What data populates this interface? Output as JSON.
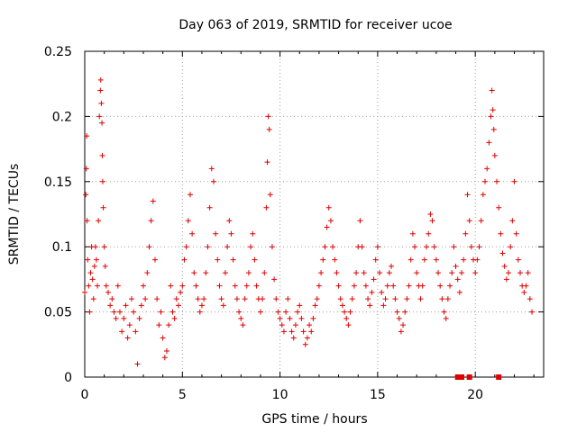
{
  "chart_data": {
    "type": "scatter",
    "title": "Day 063 of 2019, SRMTID for receiver ucoe",
    "xlabel": "GPS time / hours",
    "ylabel": "SRMTID / TECUs",
    "xlim": [
      0,
      23.5
    ],
    "ylim": [
      0,
      0.25
    ],
    "xticks": [
      0,
      5,
      10,
      15,
      20
    ],
    "xtick_labels": [
      "0",
      "5",
      "10",
      "15",
      "20"
    ],
    "yticks": [
      0,
      0.05,
      0.1,
      0.15,
      0.2,
      0.25
    ],
    "ytick_labels": [
      "0",
      "0.05",
      "0.1",
      "0.15",
      "0.2",
      "0.25"
    ],
    "grid": true,
    "legend": "none",
    "marker": "plus",
    "color": "#e00000",
    "series": [
      {
        "name": "SRMTID",
        "points": [
          [
            0.0,
            0.065
          ],
          [
            0.05,
            0.14
          ],
          [
            0.08,
            0.16
          ],
          [
            0.1,
            0.185
          ],
          [
            0.12,
            0.12
          ],
          [
            0.15,
            0.09
          ],
          [
            0.2,
            0.07
          ],
          [
            0.25,
            0.05
          ],
          [
            0.3,
            0.08
          ],
          [
            0.35,
            0.1
          ],
          [
            0.4,
            0.075
          ],
          [
            0.45,
            0.06
          ],
          [
            0.5,
            0.085
          ],
          [
            0.55,
            0.1
          ],
          [
            0.6,
            0.09
          ],
          [
            0.65,
            0.07
          ],
          [
            0.7,
            0.12
          ],
          [
            0.75,
            0.2
          ],
          [
            0.8,
            0.22
          ],
          [
            0.82,
            0.228
          ],
          [
            0.85,
            0.21
          ],
          [
            0.88,
            0.195
          ],
          [
            0.9,
            0.17
          ],
          [
            0.92,
            0.15
          ],
          [
            0.95,
            0.13
          ],
          [
            1.0,
            0.1
          ],
          [
            1.05,
            0.085
          ],
          [
            1.1,
            0.07
          ],
          [
            1.2,
            0.065
          ],
          [
            1.3,
            0.055
          ],
          [
            1.4,
            0.06
          ],
          [
            1.5,
            0.05
          ],
          [
            1.6,
            0.045
          ],
          [
            1.7,
            0.07
          ],
          [
            1.8,
            0.05
          ],
          [
            1.9,
            0.035
          ],
          [
            2.0,
            0.045
          ],
          [
            2.1,
            0.055
          ],
          [
            2.2,
            0.03
          ],
          [
            2.3,
            0.04
          ],
          [
            2.4,
            0.06
          ],
          [
            2.5,
            0.05
          ],
          [
            2.6,
            0.035
          ],
          [
            2.7,
            0.01
          ],
          [
            2.8,
            0.045
          ],
          [
            2.9,
            0.055
          ],
          [
            3.0,
            0.07
          ],
          [
            3.1,
            0.06
          ],
          [
            3.2,
            0.08
          ],
          [
            3.3,
            0.1
          ],
          [
            3.4,
            0.12
          ],
          [
            3.5,
            0.135
          ],
          [
            3.6,
            0.09
          ],
          [
            3.7,
            0.06
          ],
          [
            3.8,
            0.04
          ],
          [
            3.9,
            0.05
          ],
          [
            4.0,
            0.03
          ],
          [
            4.1,
            0.015
          ],
          [
            4.2,
            0.02
          ],
          [
            4.3,
            0.04
          ],
          [
            4.4,
            0.07
          ],
          [
            4.5,
            0.05
          ],
          [
            4.6,
            0.045
          ],
          [
            4.7,
            0.06
          ],
          [
            4.8,
            0.055
          ],
          [
            4.9,
            0.065
          ],
          [
            5.0,
            0.07
          ],
          [
            5.1,
            0.09
          ],
          [
            5.2,
            0.1
          ],
          [
            5.3,
            0.12
          ],
          [
            5.4,
            0.14
          ],
          [
            5.5,
            0.11
          ],
          [
            5.6,
            0.08
          ],
          [
            5.7,
            0.07
          ],
          [
            5.8,
            0.06
          ],
          [
            5.9,
            0.05
          ],
          [
            6.0,
            0.055
          ],
          [
            6.1,
            0.06
          ],
          [
            6.2,
            0.08
          ],
          [
            6.3,
            0.1
          ],
          [
            6.4,
            0.13
          ],
          [
            6.5,
            0.16
          ],
          [
            6.6,
            0.15
          ],
          [
            6.7,
            0.11
          ],
          [
            6.8,
            0.09
          ],
          [
            6.9,
            0.07
          ],
          [
            7.0,
            0.06
          ],
          [
            7.1,
            0.055
          ],
          [
            7.2,
            0.08
          ],
          [
            7.3,
            0.1
          ],
          [
            7.4,
            0.12
          ],
          [
            7.5,
            0.11
          ],
          [
            7.6,
            0.09
          ],
          [
            7.7,
            0.07
          ],
          [
            7.8,
            0.06
          ],
          [
            7.9,
            0.05
          ],
          [
            8.0,
            0.045
          ],
          [
            8.1,
            0.04
          ],
          [
            8.2,
            0.06
          ],
          [
            8.3,
            0.07
          ],
          [
            8.4,
            0.08
          ],
          [
            8.5,
            0.1
          ],
          [
            8.6,
            0.11
          ],
          [
            8.7,
            0.09
          ],
          [
            8.8,
            0.07
          ],
          [
            8.9,
            0.06
          ],
          [
            9.0,
            0.05
          ],
          [
            9.1,
            0.06
          ],
          [
            9.2,
            0.08
          ],
          [
            9.3,
            0.13
          ],
          [
            9.35,
            0.165
          ],
          [
            9.4,
            0.2
          ],
          [
            9.45,
            0.19
          ],
          [
            9.5,
            0.14
          ],
          [
            9.6,
            0.1
          ],
          [
            9.7,
            0.075
          ],
          [
            9.8,
            0.06
          ],
          [
            9.9,
            0.05
          ],
          [
            10.0,
            0.045
          ],
          [
            10.1,
            0.04
          ],
          [
            10.2,
            0.035
          ],
          [
            10.3,
            0.05
          ],
          [
            10.4,
            0.06
          ],
          [
            10.5,
            0.045
          ],
          [
            10.6,
            0.035
          ],
          [
            10.7,
            0.03
          ],
          [
            10.8,
            0.04
          ],
          [
            10.9,
            0.05
          ],
          [
            11.0,
            0.055
          ],
          [
            11.1,
            0.045
          ],
          [
            11.2,
            0.035
          ],
          [
            11.3,
            0.025
          ],
          [
            11.4,
            0.03
          ],
          [
            11.5,
            0.04
          ],
          [
            11.6,
            0.035
          ],
          [
            11.7,
            0.045
          ],
          [
            11.8,
            0.055
          ],
          [
            11.9,
            0.06
          ],
          [
            12.0,
            0.07
          ],
          [
            12.1,
            0.08
          ],
          [
            12.2,
            0.09
          ],
          [
            12.3,
            0.1
          ],
          [
            12.4,
            0.115
          ],
          [
            12.5,
            0.13
          ],
          [
            12.6,
            0.12
          ],
          [
            12.7,
            0.1
          ],
          [
            12.8,
            0.09
          ],
          [
            12.9,
            0.08
          ],
          [
            13.0,
            0.07
          ],
          [
            13.1,
            0.06
          ],
          [
            13.2,
            0.055
          ],
          [
            13.3,
            0.05
          ],
          [
            13.4,
            0.045
          ],
          [
            13.5,
            0.04
          ],
          [
            13.6,
            0.05
          ],
          [
            13.7,
            0.06
          ],
          [
            13.8,
            0.07
          ],
          [
            13.9,
            0.08
          ],
          [
            14.0,
            0.1
          ],
          [
            14.1,
            0.12
          ],
          [
            14.2,
            0.1
          ],
          [
            14.3,
            0.08
          ],
          [
            14.4,
            0.07
          ],
          [
            14.5,
            0.06
          ],
          [
            14.6,
            0.055
          ],
          [
            14.7,
            0.065
          ],
          [
            14.8,
            0.075
          ],
          [
            14.9,
            0.09
          ],
          [
            15.0,
            0.1
          ],
          [
            15.1,
            0.08
          ],
          [
            15.2,
            0.065
          ],
          [
            15.3,
            0.055
          ],
          [
            15.4,
            0.06
          ],
          [
            15.5,
            0.07
          ],
          [
            15.6,
            0.08
          ],
          [
            15.7,
            0.085
          ],
          [
            15.8,
            0.07
          ],
          [
            15.9,
            0.06
          ],
          [
            16.0,
            0.05
          ],
          [
            16.1,
            0.045
          ],
          [
            16.2,
            0.035
          ],
          [
            16.3,
            0.04
          ],
          [
            16.4,
            0.05
          ],
          [
            16.5,
            0.06
          ],
          [
            16.6,
            0.07
          ],
          [
            16.7,
            0.09
          ],
          [
            16.8,
            0.11
          ],
          [
            16.9,
            0.1
          ],
          [
            17.0,
            0.08
          ],
          [
            17.1,
            0.07
          ],
          [
            17.2,
            0.06
          ],
          [
            17.3,
            0.07
          ],
          [
            17.4,
            0.09
          ],
          [
            17.5,
            0.1
          ],
          [
            17.6,
            0.11
          ],
          [
            17.7,
            0.125
          ],
          [
            17.8,
            0.12
          ],
          [
            17.9,
            0.1
          ],
          [
            18.0,
            0.09
          ],
          [
            18.1,
            0.08
          ],
          [
            18.2,
            0.07
          ],
          [
            18.3,
            0.06
          ],
          [
            18.4,
            0.05
          ],
          [
            18.5,
            0.045
          ],
          [
            18.6,
            0.06
          ],
          [
            18.7,
            0.07
          ],
          [
            18.8,
            0.08
          ],
          [
            18.9,
            0.1
          ],
          [
            19.0,
            0.085
          ],
          [
            19.1,
            0.075
          ],
          [
            19.2,
            0.065
          ],
          [
            19.3,
            0.08
          ],
          [
            19.4,
            0.09
          ],
          [
            19.5,
            0.11
          ],
          [
            19.6,
            0.14
          ],
          [
            19.7,
            0.12
          ],
          [
            19.8,
            0.1
          ],
          [
            19.9,
            0.09
          ],
          [
            20.0,
            0.08
          ],
          [
            20.1,
            0.09
          ],
          [
            20.2,
            0.1
          ],
          [
            20.3,
            0.12
          ],
          [
            20.4,
            0.14
          ],
          [
            20.5,
            0.15
          ],
          [
            20.6,
            0.16
          ],
          [
            20.7,
            0.18
          ],
          [
            20.8,
            0.2
          ],
          [
            20.85,
            0.22
          ],
          [
            20.9,
            0.205
          ],
          [
            20.95,
            0.19
          ],
          [
            21.0,
            0.17
          ],
          [
            21.1,
            0.15
          ],
          [
            21.2,
            0.13
          ],
          [
            21.3,
            0.11
          ],
          [
            21.4,
            0.095
          ],
          [
            21.5,
            0.085
          ],
          [
            21.6,
            0.075
          ],
          [
            21.7,
            0.08
          ],
          [
            21.8,
            0.1
          ],
          [
            21.9,
            0.12
          ],
          [
            22.0,
            0.15
          ],
          [
            22.1,
            0.11
          ],
          [
            22.2,
            0.09
          ],
          [
            22.3,
            0.08
          ],
          [
            22.4,
            0.07
          ],
          [
            22.5,
            0.065
          ],
          [
            22.6,
            0.07
          ],
          [
            22.7,
            0.08
          ],
          [
            22.8,
            0.06
          ],
          [
            22.9,
            0.05
          ]
        ]
      },
      {
        "name": "gaps",
        "marker": "square",
        "points": [
          [
            19.1,
            0.0
          ],
          [
            19.3,
            0.0
          ],
          [
            19.7,
            0.0
          ],
          [
            21.2,
            0.0
          ]
        ]
      }
    ]
  }
}
